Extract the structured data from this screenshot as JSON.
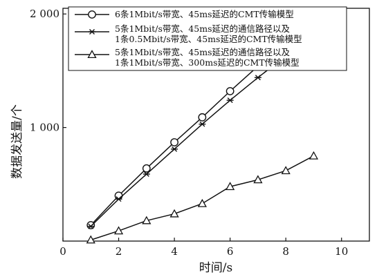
{
  "chart_data": {
    "type": "line",
    "title": "",
    "xlabel": "时间/s",
    "ylabel": "数据发送量/个",
    "xlim": [
      0,
      11
    ],
    "ylim": [
      0,
      2050
    ],
    "xticks": [
      0,
      2,
      4,
      6,
      8,
      10
    ],
    "yticks": [
      1000,
      2000
    ],
    "xtick_labels": [
      "0",
      "2",
      "4",
      "6",
      "8",
      "10"
    ],
    "ytick_labels": [
      "1 000",
      "2 000"
    ],
    "grid": false,
    "legend_position": "top-left",
    "series": [
      {
        "name": "6条1Mbit/s带宽、45ms延迟的CMT传输模型",
        "marker": "circle",
        "x": [
          1,
          2,
          3,
          4,
          5,
          6,
          7,
          8,
          9
        ],
        "values": [
          140,
          400,
          640,
          870,
          1090,
          1320,
          1540,
          1740,
          1940
        ]
      },
      {
        "name": "5条1Mbit/s带宽、45ms延迟的通信路径以及 1条0.5Mbit/s带宽、45ms延迟的CMT传输模型",
        "legend_lines": [
          "5条1Mbit/s带宽、45ms延迟的通信路径以及",
          "1条0.5Mbit/s带宽、45ms延迟的CMT传输模型"
        ],
        "marker": "asterisk",
        "x": [
          1,
          2,
          3,
          4,
          5,
          6,
          7,
          8,
          9
        ],
        "values": [
          130,
          370,
          590,
          810,
          1030,
          1240,
          1440,
          1630,
          1810
        ]
      },
      {
        "name": "5条1Mbit/s带宽、45ms延迟的通信路径以及 1条1Mbit/s带宽、300ms延迟的CMT传输模型",
        "legend_lines": [
          "5条1Mbit/s带宽、45ms延迟的通信路径以及",
          "1条1Mbit/s带宽、300ms延迟的CMT传输模型"
        ],
        "marker": "triangle",
        "x": [
          1,
          2,
          3,
          4,
          5,
          6,
          7,
          8,
          9
        ],
        "values": [
          10,
          90,
          180,
          240,
          330,
          480,
          540,
          620,
          750
        ]
      }
    ]
  }
}
